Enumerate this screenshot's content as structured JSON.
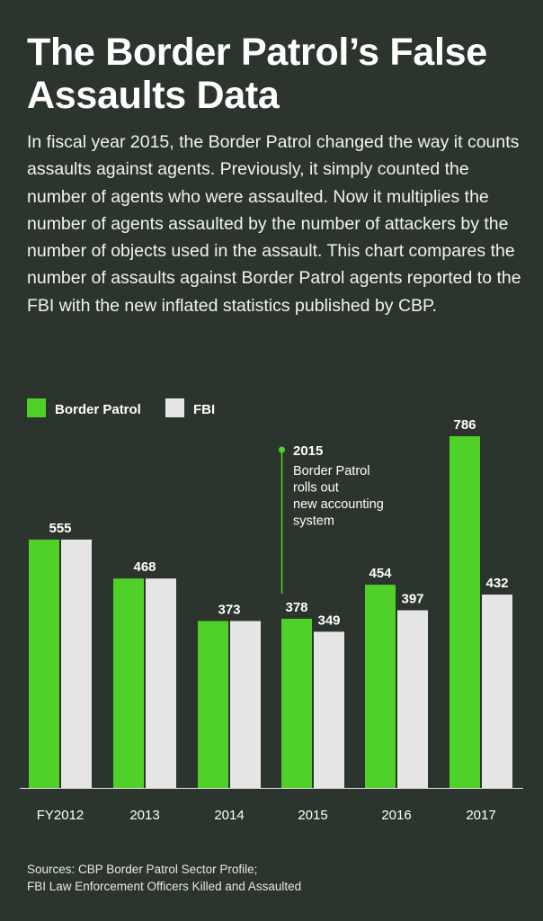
{
  "header": {
    "title": "The Border Patrol’s False\nAssaults Data",
    "description": "In fiscal year 2015, the Border Patrol changed the way it counts assaults against agents. Previously, it simply counted the number of agents who were assaulted. Now it multiplies the number of agents assaulted by the number of attackers by the number of objects used in the assault. This chart compares the number of assaults against Border Patrol agents reported to the FBI with the new inflated statistics published by CBP."
  },
  "colors": {
    "background": "#2b352d",
    "border_patrol": "#4fd12a",
    "fbi": "#e6e6e6"
  },
  "chart_data": {
    "type": "bar",
    "categories": [
      "FY2012",
      "2013",
      "2014",
      "2015",
      "2016",
      "2017"
    ],
    "series": [
      {
        "name": "Border Patrol",
        "values": [
          555,
          468,
          373,
          378,
          454,
          786
        ]
      },
      {
        "name": "FBI",
        "values": [
          555,
          468,
          373,
          349,
          397,
          432
        ]
      }
    ],
    "ylim": [
      0,
      786
    ],
    "grid": false,
    "legend": "top-left",
    "annotation": {
      "category": "2015",
      "heading": "2015",
      "lines": [
        "Border Patrol",
        "rolls out",
        "new accounting",
        "system"
      ]
    }
  },
  "sources": {
    "line1": "Sources: CBP Border Patrol Sector Profile;",
    "line2": "FBI Law Enforcement Officers Killed and Assaulted"
  }
}
